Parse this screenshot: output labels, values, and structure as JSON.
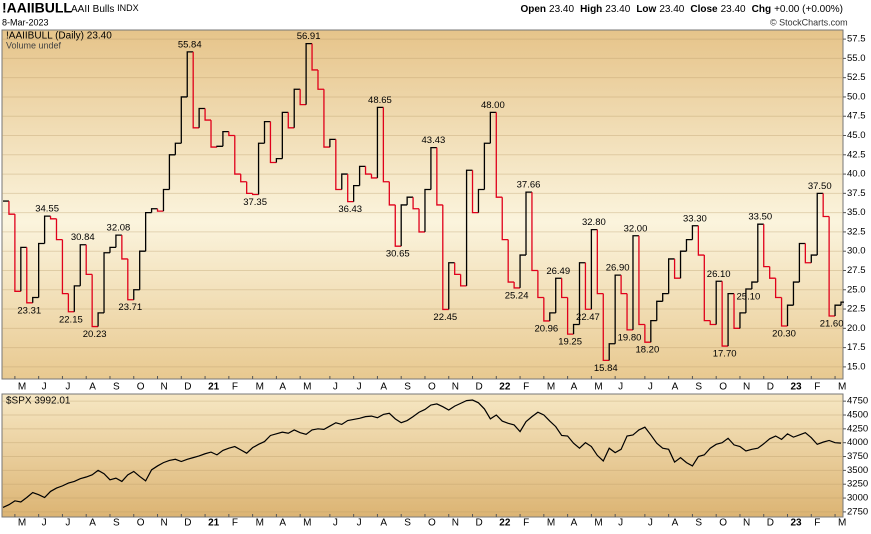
{
  "header": {
    "symbol": "!AAIIBULL",
    "name": "AAII Bulls",
    "exchange": "INDX",
    "date": "8-Mar-2023",
    "ohlc": [
      {
        "label": "Open",
        "value": "23.40"
      },
      {
        "label": "High",
        "value": "23.40"
      },
      {
        "label": "Low",
        "value": "23.40"
      },
      {
        "label": "Close",
        "value": "23.40"
      },
      {
        "label": "Chg",
        "value": "+0.00 (+0.00%)"
      }
    ],
    "credit": "© StockCharts.com"
  },
  "chart_data": [
    {
      "type": "step",
      "legend": "!AAIIBULL (Daily) 23.40",
      "sublegend": "Volume undef",
      "up_color": "#000000",
      "down_color": "#e0001b",
      "grid": true,
      "categories": [
        null,
        null,
        "M",
        null,
        null,
        null,
        "J",
        null,
        null,
        null,
        "J",
        null,
        null,
        null,
        "A",
        null,
        null,
        null,
        "S",
        null,
        null,
        null,
        "O",
        null,
        null,
        null,
        "N",
        null,
        null,
        null,
        "D",
        null,
        null,
        null,
        "21",
        null,
        null,
        null,
        "F",
        null,
        null,
        null,
        "M",
        null,
        null,
        null,
        "A",
        null,
        null,
        null,
        "M",
        null,
        null,
        null,
        null,
        "J",
        null,
        null,
        null,
        "J",
        null,
        null,
        null,
        "A",
        null,
        null,
        null,
        "S",
        null,
        null,
        null,
        "O",
        null,
        null,
        null,
        "N",
        null,
        null,
        null,
        "D",
        null,
        null,
        null,
        "22",
        null,
        null,
        null,
        "F",
        null,
        null,
        null,
        "M",
        null,
        null,
        null,
        "A",
        null,
        null,
        null,
        "M",
        null,
        null,
        null,
        "J",
        null,
        null,
        null,
        null,
        "J",
        null,
        null,
        null,
        "A",
        null,
        null,
        null,
        "S",
        null,
        null,
        null,
        "O",
        null,
        null,
        null,
        "N",
        null,
        null,
        null,
        "D",
        null,
        null,
        null,
        "23",
        null,
        null,
        null,
        "F",
        null,
        null,
        null,
        "M",
        null
      ],
      "values": [
        36.5,
        34.8,
        24.8,
        30.5,
        23.31,
        24.0,
        31.0,
        34.55,
        34.2,
        31.5,
        24.5,
        22.15,
        25.5,
        30.84,
        27.0,
        20.23,
        22.0,
        29.8,
        30.5,
        32.08,
        29.0,
        23.71,
        25.0,
        30.0,
        35.0,
        35.5,
        35.2,
        38.0,
        42.5,
        44.0,
        50.0,
        55.84,
        46.0,
        48.5,
        47.0,
        43.5,
        43.6,
        45.5,
        45.0,
        40.0,
        39.0,
        37.5,
        37.35,
        44.0,
        46.8,
        41.5,
        42.0,
        48.0,
        46.0,
        51.0,
        49.0,
        56.91,
        53.5,
        51.0,
        43.5,
        44.5,
        38.0,
        40.0,
        36.43,
        38.5,
        41.0,
        40.0,
        39.5,
        48.65,
        39.0,
        36.0,
        30.65,
        36.0,
        37.0,
        35.5,
        32.5,
        38.0,
        43.43,
        36.0,
        22.45,
        28.5,
        27.0,
        25.5,
        40.5,
        35.0,
        38.0,
        44.0,
        48.0,
        37.0,
        31.5,
        26.0,
        25.24,
        29.5,
        37.66,
        27.5,
        24.0,
        20.96,
        22.0,
        26.49,
        24.0,
        19.25,
        20.5,
        28.5,
        22.47,
        32.8,
        24.5,
        15.84,
        18.0,
        26.9,
        24.5,
        19.8,
        32.0,
        20.5,
        18.2,
        21.0,
        23.5,
        24.5,
        29.0,
        26.5,
        30.0,
        31.5,
        33.3,
        29.5,
        21.0,
        20.5,
        26.1,
        17.7,
        24.5,
        20.0,
        22.0,
        25.1,
        26.0,
        33.5,
        28.0,
        26.5,
        24.0,
        20.3,
        23.0,
        26.0,
        31.0,
        28.5,
        29.5,
        37.5,
        34.5,
        21.6,
        23.0,
        23.4
      ],
      "value_labels": [
        null,
        null,
        null,
        null,
        "23.31",
        null,
        null,
        "34.55",
        null,
        null,
        null,
        "22.15",
        null,
        "30.84",
        null,
        "20.23",
        null,
        null,
        null,
        "32.08",
        null,
        "23.71",
        null,
        null,
        null,
        null,
        null,
        null,
        null,
        null,
        null,
        "55.84",
        null,
        null,
        null,
        null,
        null,
        null,
        null,
        null,
        null,
        null,
        "37.35",
        null,
        null,
        null,
        null,
        null,
        null,
        null,
        null,
        "56.91",
        null,
        null,
        null,
        null,
        null,
        null,
        "36.43",
        null,
        null,
        null,
        null,
        "48.65",
        null,
        null,
        "30.65",
        null,
        null,
        null,
        null,
        null,
        "43.43",
        null,
        "22.45",
        null,
        null,
        null,
        null,
        null,
        null,
        null,
        "48.00",
        null,
        null,
        null,
        "25.24",
        null,
        "37.66",
        null,
        null,
        "20.96",
        null,
        "26.49",
        null,
        "19.25",
        null,
        null,
        "22.47",
        "32.80",
        null,
        "15.84",
        null,
        "26.90",
        null,
        "19.80",
        "32.00",
        null,
        "18.20",
        null,
        null,
        null,
        null,
        null,
        null,
        null,
        "33.30",
        null,
        null,
        null,
        "26.10",
        "17.70",
        null,
        null,
        null,
        "25.10",
        null,
        "33.50",
        null,
        null,
        null,
        "20.30",
        null,
        null,
        null,
        null,
        null,
        "37.50",
        null,
        "21.60",
        null,
        null
      ],
      "ylim": [
        13.43,
        58.68
      ],
      "yticks": [
        {
          "value": 15,
          "label": "15.0"
        },
        17.5,
        {
          "value": 20,
          "label": "20.0"
        },
        22.5,
        {
          "value": 25,
          "label": "25.0"
        },
        27.5,
        {
          "value": 30,
          "label": "30.0"
        },
        32.5,
        {
          "value": 35,
          "label": "35.0"
        },
        37.5,
        {
          "value": 40,
          "label": "40.0"
        },
        42.5,
        {
          "value": 45,
          "label": "45.0"
        },
        47.5,
        {
          "value": 50,
          "label": "50.0"
        },
        52.5,
        {
          "value": 55,
          "label": "55.0"
        },
        57.5
      ]
    },
    {
      "type": "line",
      "legend": "$SPX 3992.01",
      "color": "#000000",
      "grid": true,
      "categories": [
        null,
        null,
        "M",
        null,
        null,
        null,
        "J",
        null,
        null,
        null,
        "J",
        null,
        null,
        null,
        "A",
        null,
        null,
        null,
        "S",
        null,
        null,
        null,
        "O",
        null,
        null,
        null,
        "N",
        null,
        null,
        null,
        "D",
        null,
        null,
        null,
        "21",
        null,
        null,
        null,
        "F",
        null,
        null,
        null,
        "M",
        null,
        null,
        null,
        "A",
        null,
        null,
        null,
        "M",
        null,
        null,
        null,
        null,
        "J",
        null,
        null,
        null,
        "J",
        null,
        null,
        null,
        "A",
        null,
        null,
        null,
        "S",
        null,
        null,
        null,
        "O",
        null,
        null,
        null,
        "N",
        null,
        null,
        null,
        "D",
        null,
        null,
        null,
        "22",
        null,
        null,
        null,
        "F",
        null,
        null,
        null,
        "M",
        null,
        null,
        null,
        "A",
        null,
        null,
        null,
        "M",
        null,
        null,
        null,
        "J",
        null,
        null,
        null,
        null,
        "J",
        null,
        null,
        null,
        "A",
        null,
        null,
        null,
        "S",
        null,
        null,
        null,
        "O",
        null,
        null,
        null,
        "N",
        null,
        null,
        null,
        "D",
        null,
        null,
        null,
        "23",
        null,
        null,
        null,
        "F",
        null,
        null,
        null,
        "M",
        null
      ],
      "values": [
        2830,
        2880,
        2950,
        2930,
        3010,
        3100,
        3060,
        3010,
        3120,
        3180,
        3220,
        3270,
        3300,
        3350,
        3380,
        3420,
        3500,
        3440,
        3330,
        3360,
        3300,
        3420,
        3480,
        3390,
        3310,
        3510,
        3580,
        3640,
        3680,
        3700,
        3660,
        3700,
        3730,
        3760,
        3800,
        3830,
        3780,
        3860,
        3900,
        3930,
        3870,
        3810,
        3910,
        3970,
        4020,
        4130,
        4160,
        4190,
        4170,
        4230,
        4180,
        4150,
        4230,
        4250,
        4240,
        4300,
        4360,
        4330,
        4400,
        4420,
        4440,
        4470,
        4480,
        4450,
        4510,
        4530,
        4430,
        4360,
        4400,
        4470,
        4550,
        4600,
        4680,
        4700,
        4650,
        4590,
        4660,
        4710,
        4760,
        4770,
        4720,
        4610,
        4430,
        4500,
        4390,
        4350,
        4320,
        4200,
        4380,
        4470,
        4550,
        4500,
        4390,
        4290,
        4130,
        4120,
        3990,
        3900,
        4000,
        3930,
        3770,
        3670,
        3900,
        3820,
        3880,
        4120,
        4140,
        4230,
        4280,
        4140,
        3990,
        3900,
        3880,
        3650,
        3730,
        3640,
        3580,
        3750,
        3780,
        3900,
        3970,
        4000,
        4080,
        3960,
        3930,
        3850,
        3880,
        3900,
        3980,
        4070,
        4120,
        4060,
        4160,
        4100,
        4140,
        4180,
        4090,
        3970,
        4010,
        4040,
        4000,
        3992.01
      ],
      "ylim": [
        2658,
        4879
      ],
      "yticks": [
        2750,
        3000,
        3250,
        3500,
        3750,
        4000,
        4250,
        4500,
        4750
      ]
    }
  ]
}
